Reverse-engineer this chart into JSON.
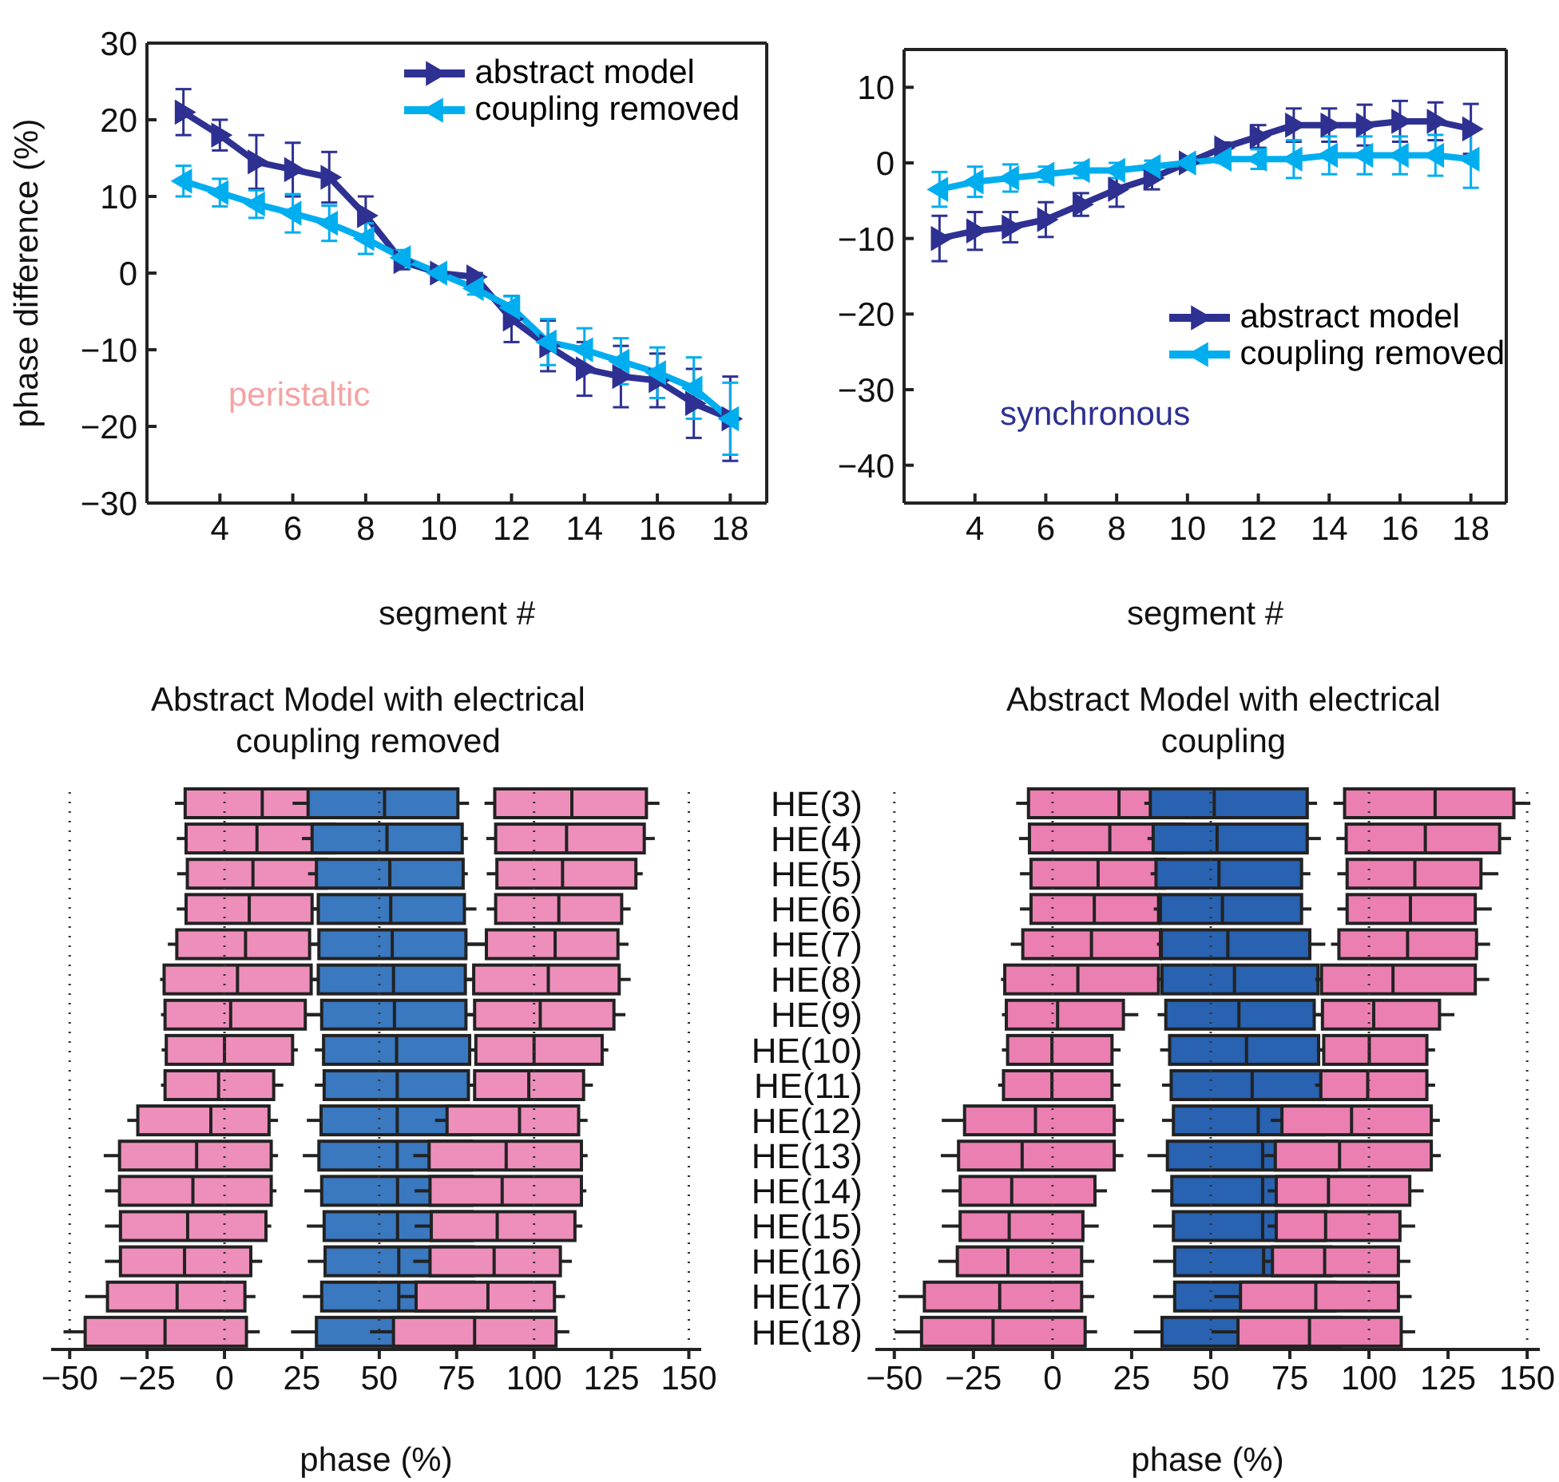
{
  "chart_data": [
    {
      "type": "line",
      "xlabel": "segment #",
      "ylabel": "phase difference (%)",
      "x": [
        3,
        4,
        5,
        6,
        7,
        8,
        9,
        10,
        11,
        12,
        13,
        14,
        15,
        16,
        17,
        18
      ],
      "xlim": [
        2,
        19
      ],
      "xticks": [
        4,
        6,
        8,
        10,
        12,
        14,
        16,
        18
      ],
      "ylim": [
        -30,
        30
      ],
      "yticks": [
        -30,
        -20,
        -10,
        0,
        10,
        20,
        30
      ],
      "legend": "top right",
      "marker": "triangle",
      "annotations": [
        "peristaltic"
      ],
      "series": [
        {
          "name": "abstract model",
          "color": "#2e3192",
          "values": [
            21,
            18,
            14.5,
            13.5,
            12.5,
            7.5,
            1.5,
            0,
            -0.5,
            -6,
            -9.5,
            -12.5,
            -13.5,
            -14,
            -17,
            -19
          ],
          "errors": [
            3,
            2,
            3.5,
            3.5,
            3.3,
            2.5,
            1,
            0.5,
            0.5,
            3,
            3.3,
            3.5,
            4,
            3.5,
            4.5,
            5.5
          ]
        },
        {
          "name": "coupling removed",
          "color": "#00aeef",
          "values": [
            12,
            10.5,
            9,
            7.8,
            6.5,
            4.5,
            2,
            0,
            -2,
            -4.5,
            -9,
            -10,
            -11.5,
            -13,
            -15,
            -19
          ],
          "errors": [
            2,
            1.8,
            1.8,
            2.5,
            2.3,
            2,
            1,
            0.5,
            0.8,
            1.5,
            3,
            2.8,
            3,
            3.3,
            4,
            4.7
          ]
        }
      ]
    },
    {
      "type": "line",
      "xlabel": "segment #",
      "x": [
        3,
        4,
        5,
        6,
        7,
        8,
        9,
        10,
        11,
        12,
        13,
        14,
        15,
        16,
        17,
        18
      ],
      "xlim": [
        2,
        19
      ],
      "xticks": [
        4,
        6,
        8,
        10,
        12,
        14,
        16,
        18
      ],
      "ylim": [
        -45,
        15
      ],
      "yticks": [
        -40,
        -30,
        -20,
        -10,
        0,
        10
      ],
      "legend": "bottom right",
      "marker": "triangle",
      "annotations": [
        "synchronous"
      ],
      "series": [
        {
          "name": "abstract model",
          "color": "#2e3192",
          "values": [
            -10,
            -9,
            -8.5,
            -7.5,
            -5.5,
            -3.5,
            -2,
            0,
            2,
            3.5,
            5,
            5,
            5,
            5.5,
            5.5,
            4.5
          ],
          "errors": [
            3,
            2.5,
            2,
            2.3,
            1.5,
            2.3,
            1.5,
            0.5,
            0.7,
            1.5,
            2.2,
            2.2,
            2.7,
            2.7,
            2.5,
            3.3
          ]
        },
        {
          "name": "coupling removed",
          "color": "#00aeef",
          "values": [
            -3.5,
            -2.5,
            -2,
            -1.5,
            -1,
            -1,
            -0.5,
            0,
            0.5,
            0.5,
            0.5,
            1,
            1,
            1,
            1,
            0.5
          ],
          "errors": [
            2.3,
            2,
            1.8,
            1,
            1,
            1,
            0.8,
            0.3,
            0.5,
            1.3,
            2.5,
            2.5,
            2.5,
            2.5,
            2.7,
            3.8
          ]
        }
      ]
    },
    {
      "type": "box",
      "orientation": "horizontal",
      "title": "Abstract Model with electrical coupling removed",
      "xlabel": "phase (%)",
      "categories": [
        null,
        null,
        null,
        null,
        null,
        null,
        null,
        null,
        null,
        null,
        null,
        null,
        null,
        null,
        null,
        null
      ],
      "xlim": [
        -56,
        154
      ],
      "xticks": [
        -50,
        -25,
        0,
        25,
        50,
        75,
        100,
        125,
        150
      ],
      "ref_lines": [
        {
          "axis": "x",
          "value": -50,
          "line_style": "dotted"
        },
        {
          "axis": "x",
          "value": 0,
          "line_style": "dotted"
        },
        {
          "axis": "x",
          "value": 50,
          "line_style": "dotted"
        },
        {
          "axis": "x",
          "value": 100,
          "line_style": "dotted"
        },
        {
          "axis": "x",
          "value": 150,
          "line_style": "dotted"
        }
      ],
      "series": [
        {
          "color": "#ee8fbb",
          "boxes": [
            {
              "low": -16,
              "q1": -12.7,
              "median": 12.2,
              "q3": 36.4,
              "high": 40
            },
            {
              "low": -15.4,
              "q1": -12.4,
              "median": 10.5,
              "q3": 35.6,
              "high": 38.8
            },
            {
              "low": -15.3,
              "q1": -12,
              "median": 9.2,
              "q3": 32.9,
              "high": 35.4
            },
            {
              "low": -15.4,
              "q1": -12.4,
              "median": 8,
              "q3": 28.3,
              "high": 30.3
            },
            {
              "low": -18.3,
              "q1": -15.4,
              "median": 6.8,
              "q3": 27.5,
              "high": 30.5
            },
            {
              "low": -20.8,
              "q1": -19.5,
              "median": 4.2,
              "q3": 28,
              "high": 30.3
            },
            {
              "low": -20.5,
              "q1": -19.2,
              "median": 2,
              "q3": 26.1,
              "high": 31.4
            },
            {
              "low": -20.3,
              "q1": -18.8,
              "median": 0,
              "q3": 22,
              "high": 23.7
            },
            {
              "low": -20.5,
              "q1": -19.2,
              "median": -1.9,
              "q3": 15.9,
              "high": 19
            },
            {
              "low": -31.4,
              "q1": -28,
              "median": -4.4,
              "q3": 14.4,
              "high": 17.3
            },
            {
              "low": -39,
              "q1": -33.9,
              "median": -9,
              "q3": 15.1,
              "high": 17.3
            },
            {
              "low": -38.6,
              "q1": -33.9,
              "median": -10.2,
              "q3": 15.1,
              "high": 16.8
            },
            {
              "low": -38.6,
              "q1": -33.6,
              "median": -11.9,
              "q3": 13.4,
              "high": 15.1
            },
            {
              "low": -38.6,
              "q1": -33.6,
              "median": -12.9,
              "q3": 8.5,
              "high": 12.2
            },
            {
              "low": -45,
              "q1": -37.8,
              "median": -15.3,
              "q3": 6.6,
              "high": 10
            },
            {
              "low": -52,
              "q1": -45,
              "median": -19.2,
              "q3": 7.1,
              "high": 11.4
            }
          ]
        },
        {
          "color": "#3a78bf",
          "boxes": [
            {
              "low": 22,
              "q1": 27,
              "median": 51.7,
              "q3": 75.4,
              "high": 79
            },
            {
              "low": 25,
              "q1": 28.3,
              "median": 52.5,
              "q3": 76.8,
              "high": 78.6
            },
            {
              "low": 27,
              "q1": 29.7,
              "median": 53.4,
              "q3": 77.1,
              "high": 78.6
            },
            {
              "low": 28,
              "q1": 30.3,
              "median": 53.7,
              "q3": 77.5,
              "high": 81.4
            },
            {
              "low": 28,
              "q1": 30.5,
              "median": 54.2,
              "q3": 78,
              "high": 84.6
            },
            {
              "low": 28,
              "q1": 30.3,
              "median": 54.6,
              "q3": 77.8,
              "high": 80
            },
            {
              "low": 26.1,
              "q1": 31.4,
              "median": 54.9,
              "q3": 78,
              "high": 82
            },
            {
              "low": 29.2,
              "q1": 32,
              "median": 55.6,
              "q3": 79.2,
              "high": 81
            },
            {
              "low": 29.2,
              "q1": 32.2,
              "median": 55.8,
              "q3": 78.8,
              "high": 80
            },
            {
              "low": 26.6,
              "q1": 31.2,
              "median": 55.8,
              "q3": 79.2,
              "high": 81
            },
            {
              "low": 25.3,
              "q1": 30.5,
              "median": 55.8,
              "q3": 79.7,
              "high": 82
            },
            {
              "low": 25.8,
              "q1": 31.4,
              "median": 55.9,
              "q3": 80,
              "high": 82
            },
            {
              "low": 26.6,
              "q1": 32.2,
              "median": 55.9,
              "q3": 80,
              "high": 82
            },
            {
              "low": 26.9,
              "q1": 32.5,
              "median": 56.3,
              "q3": 80.3,
              "high": 82
            },
            {
              "low": 25.3,
              "q1": 31.4,
              "median": 56.3,
              "q3": 80.5,
              "high": 83
            },
            {
              "low": 21.5,
              "q1": 29.7,
              "median": 55.9,
              "q3": 81.4,
              "high": 83
            }
          ]
        },
        {
          "color": "#ee8fbb",
          "boxes": [
            {
              "low": 84,
              "q1": 87.3,
              "median": 112.2,
              "q3": 136.3,
              "high": 140.5
            },
            {
              "low": 84.6,
              "q1": 87.6,
              "median": 110.5,
              "q3": 135.6,
              "high": 139
            },
            {
              "low": 84.7,
              "q1": 88,
              "median": 109.2,
              "q3": 132.9,
              "high": 135.1
            },
            {
              "low": 84.7,
              "q1": 87.6,
              "median": 108,
              "q3": 128.3,
              "high": 131.2
            },
            {
              "low": 78,
              "q1": 84.6,
              "median": 106.8,
              "q3": 127.1,
              "high": 130.5
            },
            {
              "low": 77.8,
              "q1": 80.5,
              "median": 104.6,
              "q3": 127.5,
              "high": 131.2
            },
            {
              "low": 78,
              "q1": 80.8,
              "median": 102,
              "q3": 125.8,
              "high": 129.5
            },
            {
              "low": 79,
              "q1": 81.2,
              "median": 100,
              "q3": 122,
              "high": 124
            },
            {
              "low": 79,
              "q1": 80.8,
              "median": 98.3,
              "q3": 116,
              "high": 119
            },
            {
              "low": 68,
              "q1": 71.9,
              "median": 95.3,
              "q3": 114.4,
              "high": 117.3
            },
            {
              "low": 61,
              "q1": 66.1,
              "median": 91,
              "q3": 115.3,
              "high": 117.3
            },
            {
              "low": 61.4,
              "q1": 66.4,
              "median": 89.7,
              "q3": 115.3,
              "high": 116.9
            },
            {
              "low": 61.4,
              "q1": 66.8,
              "median": 88.1,
              "q3": 113.2,
              "high": 115.6
            },
            {
              "low": 61,
              "q1": 66.4,
              "median": 87.1,
              "q3": 108.5,
              "high": 112.2
            },
            {
              "low": 56.6,
              "q1": 61.9,
              "median": 85.1,
              "q3": 106.6,
              "high": 110
            },
            {
              "low": 47,
              "q1": 54.6,
              "median": 80.8,
              "q3": 107.1,
              "high": 111.4
            }
          ]
        }
      ]
    },
    {
      "type": "box",
      "orientation": "horizontal",
      "title": "Abstract Model with electrical coupling",
      "xlabel": "phase (%)",
      "categories": [
        "HE(3)",
        "HE(4)",
        "HE(5)",
        "HE(6)",
        "HE(7)",
        "HE(8)",
        "HE(9)",
        "HE(10)",
        "HE(11)",
        "HE(12)",
        "HE(13)",
        "HE(14)",
        "HE(15)",
        "HE(16)",
        "HE(17)",
        "HE(18)"
      ],
      "xlim": [
        -56,
        154
      ],
      "xticks": [
        -50,
        -25,
        0,
        25,
        50,
        75,
        100,
        125,
        150
      ],
      "ref_lines": [
        {
          "axis": "x",
          "value": -50,
          "line_style": "dotted"
        },
        {
          "axis": "x",
          "value": 0,
          "line_style": "dotted"
        },
        {
          "axis": "x",
          "value": 50,
          "line_style": "dotted"
        },
        {
          "axis": "x",
          "value": 100,
          "line_style": "dotted"
        },
        {
          "axis": "x",
          "value": 150,
          "line_style": "dotted"
        }
      ],
      "series": [
        {
          "color": "#ec7fb2",
          "boxes": [
            {
              "low": -11.5,
              "q1": -7.6,
              "median": 21,
              "q3": 45.7,
              "high": 47
            },
            {
              "low": -10.6,
              "q1": -7.3,
              "median": 18.1,
              "q3": 41.4,
              "high": 43
            },
            {
              "low": -10.3,
              "q1": -6.8,
              "median": 14.4,
              "q3": 35.4,
              "high": 37
            },
            {
              "low": -10.3,
              "q1": -6.8,
              "median": 13.2,
              "q3": 33.5,
              "high": 35
            },
            {
              "low": -13.2,
              "q1": -9.4,
              "median": 12.3,
              "q3": 34.1,
              "high": 35
            },
            {
              "low": -16.3,
              "q1": -15.1,
              "median": 8,
              "q3": 33.5,
              "high": 35
            },
            {
              "low": -16,
              "q1": -14.6,
              "median": 1.6,
              "q3": 22.4,
              "high": 27.1
            },
            {
              "low": -16,
              "q1": -14.2,
              "median": -0.2,
              "q3": 18.8,
              "high": 21.5
            },
            {
              "low": -17.2,
              "q1": -15.5,
              "median": -0.2,
              "q3": 18.8,
              "high": 21.5
            },
            {
              "low": -35,
              "q1": -27.8,
              "median": -5.4,
              "q3": 19.5,
              "high": 22.6
            },
            {
              "low": -35.3,
              "q1": -29.7,
              "median": -9.6,
              "q3": 19.5,
              "high": 22.4
            },
            {
              "low": -35,
              "q1": -29.2,
              "median": -12.9,
              "q3": 13.4,
              "high": 17.2
            },
            {
              "low": -35,
              "q1": -29.2,
              "median": -13.7,
              "q3": 9.6,
              "high": 14.6
            },
            {
              "low": -36.1,
              "q1": -30.1,
              "median": -14.1,
              "q3": 9.2,
              "high": 13.2
            },
            {
              "low": -48.7,
              "q1": -40.5,
              "median": -16.7,
              "q3": 9.2,
              "high": 13.2
            },
            {
              "low": -49.9,
              "q1": -41.4,
              "median": -18.8,
              "q3": 10.3,
              "high": 14.1
            }
          ]
        },
        {
          "color": "#2862b0",
          "boxes": [
            {
              "low": 29,
              "q1": 30.9,
              "median": 51.1,
              "q3": 80.5,
              "high": 83.6
            },
            {
              "low": 30,
              "q1": 31.8,
              "median": 52,
              "q3": 80.5,
              "high": 84.8
            },
            {
              "low": 31,
              "q1": 32.7,
              "median": 52.6,
              "q3": 78.7,
              "high": 81.5
            },
            {
              "low": 32,
              "q1": 34.1,
              "median": 53.7,
              "q3": 78.7,
              "high": 81.8
            },
            {
              "low": 33,
              "q1": 34.4,
              "median": 55.4,
              "q3": 81.3,
              "high": 86.2
            },
            {
              "low": 33,
              "q1": 34.6,
              "median": 57.5,
              "q3": 83.9,
              "high": 86
            },
            {
              "low": 33.2,
              "q1": 35.8,
              "median": 58.9,
              "q3": 82.7,
              "high": 85.3
            },
            {
              "low": 34,
              "q1": 37,
              "median": 61.3,
              "q3": 84.1,
              "high": 86
            },
            {
              "low": 34.6,
              "q1": 37.5,
              "median": 63.1,
              "q3": 84.8,
              "high": 86
            },
            {
              "low": 34.6,
              "q1": 38.2,
              "median": 65,
              "q3": 86,
              "high": 87
            },
            {
              "low": 30,
              "q1": 36.3,
              "median": 66.4,
              "q3": 89.9,
              "high": 91
            },
            {
              "low": 31.3,
              "q1": 37.7,
              "median": 66.4,
              "q3": 87.1,
              "high": 88
            },
            {
              "low": 31.8,
              "q1": 38.2,
              "median": 66.4,
              "q3": 86.3,
              "high": 87
            },
            {
              "low": 31.8,
              "q1": 38.6,
              "median": 66.7,
              "q3": 88,
              "high": 89
            },
            {
              "low": 31.8,
              "q1": 38.6,
              "median": 66.7,
              "q3": 89.2,
              "high": 90
            },
            {
              "low": 25.7,
              "q1": 34.6,
              "median": 66,
              "q3": 91.1,
              "high": 92
            }
          ]
        },
        {
          "color": "#ec7fb2",
          "boxes": [
            {
              "low": 88.8,
              "q1": 92.3,
              "median": 120.9,
              "q3": 145.8,
              "high": 151
            },
            {
              "low": 89.7,
              "q1": 92.8,
              "median": 117.8,
              "q3": 141.3,
              "high": 144.9
            },
            {
              "low": 90,
              "q1": 93.1,
              "median": 114.5,
              "q3": 135.4,
              "high": 140.9
            },
            {
              "low": 90,
              "q1": 93.1,
              "median": 113.1,
              "q3": 133.6,
              "high": 138.8
            },
            {
              "low": 88,
              "q1": 90.5,
              "median": 112.2,
              "q3": 134,
              "high": 138.3
            },
            {
              "low": 83,
              "q1": 85,
              "median": 107.6,
              "q3": 133.6,
              "high": 138
            },
            {
              "low": 83,
              "q1": 85.3,
              "median": 101.5,
              "q3": 122.3,
              "high": 127
            },
            {
              "low": 83.5,
              "q1": 85.7,
              "median": 100.1,
              "q3": 118.3,
              "high": 120.9
            },
            {
              "low": 83,
              "q1": 84.8,
              "median": 99.6,
              "q3": 118.3,
              "high": 120.9
            },
            {
              "low": 69,
              "q1": 72.5,
              "median": 94.5,
              "q3": 119.7,
              "high": 122.4
            },
            {
              "low": 67,
              "q1": 70.4,
              "median": 90.7,
              "q3": 119.7,
              "high": 122.7
            },
            {
              "low": 68,
              "q1": 70.7,
              "median": 87.2,
              "q3": 112.9,
              "high": 117.3
            },
            {
              "low": 68,
              "q1": 70.7,
              "median": 86.3,
              "q3": 109.8,
              "high": 114.6
            },
            {
              "low": 67,
              "q1": 69.5,
              "median": 86,
              "q3": 109.3,
              "high": 113.1
            },
            {
              "low": 51.1,
              "q1": 59.4,
              "median": 83.2,
              "q3": 109.3,
              "high": 113.5
            },
            {
              "low": 50.3,
              "q1": 58.6,
              "median": 81.2,
              "q3": 110.2,
              "high": 114.6
            }
          ]
        }
      ]
    }
  ]
}
